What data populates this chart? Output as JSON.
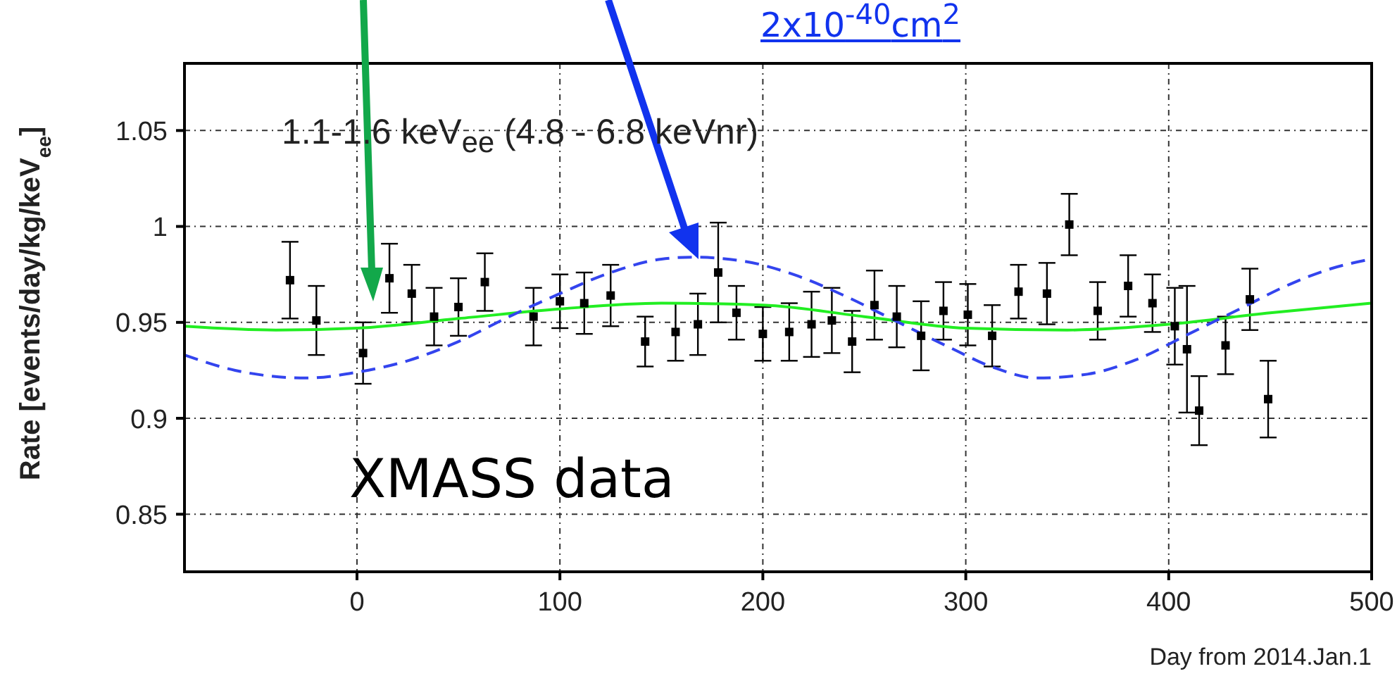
{
  "chart_data": {
    "type": "scatter",
    "xlabel": "Day from 2014.Jan.1",
    "ylabel": "Rate [events/day/kg/keV$_{ee}$]",
    "annotations": [
      "1.1-1.6 keV$_{ee}$ (4.8 - 6.8 keVnr)",
      "XMASS data",
      "2x10$^{-40}$cm$^{2}$"
    ],
    "xlim": [
      -85,
      500
    ],
    "xticks": [
      0,
      100,
      200,
      300,
      400,
      500
    ],
    "ylim": [
      0.82,
      1.085
    ],
    "yticks": [
      0.85,
      0.9,
      0.95,
      1,
      1.05
    ],
    "grid": true,
    "series": [
      {
        "marker": "square",
        "color": "#000000",
        "x": [
          -33,
          -20,
          3,
          16,
          27,
          38,
          50,
          63,
          87,
          100,
          112,
          125,
          142,
          157,
          168,
          178,
          187,
          200,
          213,
          224,
          234,
          244,
          255,
          266,
          278,
          289,
          301,
          313,
          326,
          340,
          351,
          365,
          380,
          392,
          403,
          409,
          415,
          428,
          440,
          449
        ],
        "values": [
          0.972,
          0.951,
          0.934,
          0.973,
          0.965,
          0.953,
          0.958,
          0.971,
          0.953,
          0.961,
          0.96,
          0.964,
          0.94,
          0.945,
          0.949,
          0.976,
          0.955,
          0.944,
          0.945,
          0.949,
          0.951,
          0.94,
          0.959,
          0.953,
          0.943,
          0.956,
          0.954,
          0.943,
          0.966,
          0.965,
          1.001,
          0.956,
          0.969,
          0.96,
          0.948,
          0.936,
          0.904,
          0.938,
          0.962,
          0.91
        ],
        "errors": [
          0.02,
          0.018,
          0.016,
          0.018,
          0.015,
          0.015,
          0.015,
          0.015,
          0.015,
          0.014,
          0.016,
          0.016,
          0.013,
          0.015,
          0.016,
          0.026,
          0.014,
          0.014,
          0.015,
          0.017,
          0.017,
          0.016,
          0.018,
          0.016,
          0.018,
          0.015,
          0.016,
          0.016,
          0.014,
          0.016,
          0.016,
          0.015,
          0.016,
          0.015,
          0.02,
          0.033,
          0.018,
          0.015,
          0.016,
          0.02
        ]
      },
      {
        "type": "line",
        "color": "#22ee22",
        "line_style": "solid",
        "x": [
          -85,
          -40,
          0,
          50,
          100,
          150,
          200,
          250,
          300,
          350,
          400,
          450,
          500
        ],
        "values": [
          0.948,
          0.946,
          0.947,
          0.952,
          0.957,
          0.96,
          0.959,
          0.953,
          0.947,
          0.946,
          0.949,
          0.955,
          0.96
        ]
      },
      {
        "type": "line",
        "color": "#3344ee",
        "line_style": "dashed",
        "x": [
          -85,
          -60,
          -25,
          0,
          25,
          50,
          75,
          100,
          125,
          150,
          165,
          190,
          215,
          240,
          265,
          290,
          315,
          335,
          360,
          385,
          410,
          435,
          460,
          480,
          500
        ],
        "values": [
          0.933,
          0.925,
          0.921,
          0.924,
          0.93,
          0.94,
          0.953,
          0.965,
          0.976,
          0.983,
          0.984,
          0.982,
          0.975,
          0.964,
          0.951,
          0.938,
          0.926,
          0.921,
          0.923,
          0.931,
          0.944,
          0.957,
          0.97,
          0.978,
          0.983
        ]
      }
    ]
  }
}
